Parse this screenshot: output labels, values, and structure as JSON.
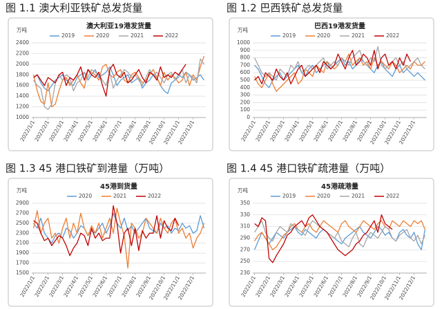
{
  "chart_data": [
    {
      "type": "line",
      "caption": "图 1.1 澳大利亚铁矿总发货量",
      "title": "澳大利亚19港发货量",
      "y_unit": "万吨",
      "categories": [
        "2022/1/1",
        null,
        null,
        null,
        "2022/2/1",
        null,
        null,
        null,
        "2022/3/1",
        null,
        null,
        null,
        "2022/4/1",
        null,
        null,
        null,
        "2022/5/1",
        null,
        null,
        null,
        "2022/6/1",
        null,
        null,
        null,
        "2022/7/1",
        null,
        null,
        null,
        "2022/8/1",
        null,
        null,
        null,
        "2022/9/1",
        null,
        null,
        null,
        "2022/10/1",
        null,
        null,
        null,
        "2022/11/1",
        null,
        null,
        null,
        "2022/12/1",
        null,
        null,
        null
      ],
      "ylim": [
        1000,
        2400
      ],
      "yticks": [
        1000,
        1200,
        1400,
        1600,
        1800,
        2000,
        2200,
        2400
      ],
      "grid": true,
      "series": [
        {
          "name": "2019",
          "color": "#5b9bd5",
          "values": [
            1750,
            1800,
            1650,
            1550,
            1500,
            1600,
            1700,
            1750,
            1800,
            1700,
            1650,
            1600,
            1750,
            1800,
            1850,
            1700,
            1800,
            1900,
            1750,
            1800,
            1850,
            1950,
            1800,
            1600,
            1700,
            1750,
            1800,
            1650,
            1700,
            1750,
            1550,
            1650,
            1700,
            1800,
            1750,
            1600,
            1500,
            1450,
            1650,
            1700,
            1800,
            1750,
            1850,
            1800,
            1700,
            1750,
            1800,
            1700
          ]
        },
        {
          "name": "2020",
          "color": "#ed7d31",
          "values": [
            1800,
            1500,
            1300,
            1250,
            1650,
            1200,
            1250,
            1500,
            1700,
            1750,
            1600,
            1700,
            1800,
            1650,
            1550,
            1900,
            1850,
            1800,
            1700,
            1950,
            2000,
            1800,
            1750,
            1850,
            1900,
            1700,
            1650,
            1800,
            1850,
            1750,
            1650,
            1700,
            1800,
            1900,
            1750,
            1600,
            1850,
            1700,
            1800,
            1750,
            1650,
            1700,
            1850,
            1600,
            1800,
            1700,
            1950,
            2150
          ]
        },
        {
          "name": "2021",
          "color": "#a5a5a5",
          "values": [
            1700,
            1600,
            1550,
            1200,
            1150,
            1250,
            1650,
            1800,
            1700,
            1800,
            1750,
            1500,
            1650,
            1700,
            1850,
            1750,
            1900,
            1850,
            1800,
            1700,
            1600,
            1850,
            1550,
            1700,
            1800,
            1900,
            1850,
            1750,
            1800,
            1700,
            1600,
            1750,
            1900,
            1800,
            1850,
            1750,
            1650,
            1800,
            1850,
            1700,
            1750,
            1900,
            1650,
            1800,
            1750,
            1650,
            2100,
            2000
          ]
        },
        {
          "name": "2022",
          "color": "#c00000",
          "values": [
            1750,
            1800,
            1700,
            1600,
            1750,
            1700,
            1650,
            1800,
            1850,
            1600,
            1750,
            1700,
            1800,
            1950,
            1700,
            1900,
            1800,
            1750,
            1850,
            1600,
            1400,
            1900,
            2000,
            1800,
            1750,
            1850,
            1650,
            1700,
            1800,
            1900,
            1750,
            1650,
            1850,
            1800,
            1700,
            1950,
            1750,
            1800,
            1750,
            1850,
            1800,
            1900,
            2000,
            null,
            null,
            null,
            null,
            null
          ]
        }
      ]
    },
    {
      "type": "line",
      "caption": "图 1.2 巴西铁矿总发货量",
      "title": "巴西19港发货量",
      "y_unit": "万吨",
      "categories": [
        "2022/1/1",
        null,
        null,
        null,
        "2022/2/1",
        null,
        null,
        null,
        "2022/3/1",
        null,
        null,
        null,
        "2022/4/1",
        null,
        null,
        null,
        "2022/5/1",
        null,
        null,
        null,
        "2022/6/1",
        null,
        null,
        null,
        "2022/7/1",
        null,
        null,
        null,
        "2022/8/1",
        null,
        null,
        null,
        "2022/9/1",
        null,
        null,
        null,
        "2022/10/1",
        null,
        null,
        null,
        "2022/11/1",
        null,
        null,
        null,
        "2022/12/1",
        null,
        null,
        null
      ],
      "ylim": [
        0,
        1000
      ],
      "yticks": [
        0,
        100,
        200,
        300,
        400,
        500,
        600,
        700,
        800,
        900,
        1000
      ],
      "grid": true,
      "series": [
        {
          "name": "2019",
          "color": "#5b9bd5",
          "values": [
            700,
            650,
            550,
            450,
            400,
            500,
            550,
            600,
            500,
            550,
            600,
            650,
            700,
            600,
            550,
            650,
            700,
            600,
            650,
            700,
            750,
            650,
            700,
            750,
            800,
            700,
            750,
            650,
            700,
            800,
            750,
            700,
            650,
            600,
            700,
            750,
            650,
            600,
            550,
            650,
            700,
            600,
            650,
            600,
            550,
            600,
            550,
            500
          ]
        },
        {
          "name": "2020",
          "color": "#ed7d31",
          "values": [
            550,
            450,
            400,
            500,
            600,
            450,
            350,
            400,
            450,
            500,
            550,
            600,
            450,
            500,
            650,
            600,
            550,
            700,
            650,
            600,
            750,
            700,
            650,
            700,
            800,
            750,
            850,
            700,
            750,
            800,
            700,
            750,
            650,
            800,
            700,
            750,
            700,
            650,
            750,
            700,
            600,
            650,
            700,
            650,
            750,
            700,
            700,
            750
          ]
        },
        {
          "name": "2021",
          "color": "#a5a5a5",
          "values": [
            800,
            700,
            600,
            550,
            600,
            550,
            500,
            650,
            600,
            550,
            700,
            650,
            750,
            600,
            650,
            700,
            650,
            700,
            750,
            800,
            650,
            700,
            750,
            700,
            800,
            750,
            700,
            800,
            850,
            900,
            750,
            700,
            800,
            750,
            950,
            700,
            650,
            700,
            750,
            800,
            700,
            750,
            650,
            700,
            750,
            800,
            700,
            650
          ]
        },
        {
          "name": "2022",
          "color": "#c00000",
          "values": [
            500,
            550,
            450,
            600,
            550,
            500,
            650,
            550,
            500,
            600,
            450,
            550,
            650,
            700,
            550,
            600,
            650,
            700,
            600,
            750,
            700,
            650,
            700,
            850,
            750,
            650,
            800,
            900,
            700,
            750,
            850,
            800,
            700,
            900,
            650,
            800,
            850,
            700,
            750,
            650,
            800,
            700,
            850,
            750,
            null,
            null,
            null,
            null
          ]
        }
      ]
    },
    {
      "type": "line",
      "caption": "图 1.3 45 港口铁矿到港量（万吨）",
      "title": "45港到货量",
      "y_unit": "万吨",
      "categories": [
        "2022/1/1",
        null,
        null,
        null,
        "2022/2/1",
        null,
        null,
        null,
        "2022/3/1",
        null,
        null,
        null,
        "2022/4/1",
        null,
        null,
        null,
        "2022/5/1",
        null,
        null,
        null,
        "2022/6/1",
        null,
        null,
        null,
        "2022/7/1",
        null,
        null,
        null,
        "2022/8/1",
        null,
        null,
        null,
        "2022/9/1",
        null,
        null,
        null,
        "2022/10/1",
        null,
        null,
        null,
        "2022/11/1",
        null,
        null,
        null,
        "2022/12/1",
        null,
        null,
        null
      ],
      "ylim": [
        1500,
        2900
      ],
      "yticks": [
        1500,
        1700,
        1900,
        2100,
        2300,
        2500,
        2700,
        2900
      ],
      "grid": true,
      "series": [
        {
          "name": "2020",
          "color": "#5b9bd5",
          "values": [
            2500,
            2400,
            2600,
            2300,
            2200,
            2100,
            2250,
            2300,
            2200,
            2400,
            2350,
            2200,
            2300,
            2450,
            2400,
            2250,
            2350,
            2300,
            2400,
            2500,
            2300,
            2450,
            2700,
            2500,
            2400,
            2600,
            2350,
            2450,
            2300,
            2400,
            2500,
            2600,
            2400,
            2350,
            2300,
            2500,
            2400,
            2450,
            2300,
            2400,
            2350,
            2500,
            2400,
            2450,
            2300,
            2350,
            2650,
            2400
          ]
        },
        {
          "name": "2021",
          "color": "#ed7d31",
          "values": [
            2400,
            2750,
            2300,
            2500,
            2600,
            2200,
            2300,
            2100,
            2400,
            2600,
            2200,
            2500,
            2300,
            2700,
            2400,
            2250,
            2450,
            2300,
            2500,
            2200,
            2400,
            2600,
            2300,
            2800,
            2500,
            2250,
            1600,
            2500,
            2400,
            2200,
            2300,
            2600,
            2500,
            2400,
            2300,
            2600,
            2400,
            2300,
            2500,
            2600,
            2300,
            2400,
            2200,
            2300,
            2000,
            2200,
            2300,
            2500
          ]
        },
        {
          "name": "2022",
          "color": "#c00000",
          "values": [
            2550,
            2500,
            2300,
            2150,
            2200,
            2050,
            2150,
            2250,
            2200,
            2050,
            1850,
            2000,
            2100,
            2300,
            2250,
            2050,
            2400,
            2200,
            2300,
            2150,
            2200,
            2200,
            2850,
            2500,
            1900,
            2300,
            2400,
            2050,
            2400,
            1950,
            2350,
            2200,
            2300,
            2300,
            2650,
            2200,
            2550,
            2400,
            2350,
            2600,
            2450,
            null,
            null,
            null,
            null,
            null,
            null,
            null
          ]
        }
      ]
    },
    {
      "type": "line",
      "caption": "图 1.4 45 港口铁矿疏港量（万吨）",
      "title": "45港疏港量",
      "y_unit": "万吨",
      "categories": [
        "2022/1/1",
        null,
        null,
        null,
        "2022/2/1",
        null,
        null,
        null,
        "2022/3/1",
        null,
        null,
        null,
        "2022/4/1",
        null,
        null,
        null,
        "2022/5/1",
        null,
        null,
        null,
        "2022/6/1",
        null,
        null,
        null,
        "2022/7/1",
        null,
        null,
        null,
        "2022/8/1",
        null,
        null,
        null,
        "2022/9/1",
        null,
        null,
        null,
        "2022/10/1",
        null,
        null,
        null,
        "2022/11/1",
        null,
        null,
        null,
        "2022/12/1",
        null,
        null,
        null
      ],
      "ylim": [
        230,
        350
      ],
      "yticks": [
        230,
        250,
        270,
        290,
        310,
        330,
        350
      ],
      "grid": true,
      "series": [
        {
          "name": "2019",
          "color": "#5b9bd5",
          "values": [
            270,
            285,
            300,
            290,
            280,
            290,
            300,
            295,
            290,
            300,
            305,
            310,
            300,
            295,
            305,
            300,
            295,
            290,
            300,
            305,
            300,
            295,
            290,
            285,
            280,
            290,
            295,
            300,
            305,
            310,
            300,
            295,
            290,
            300,
            310,
            305,
            295,
            300,
            290,
            285,
            300,
            305,
            295,
            290,
            300,
            280,
            270,
            305
          ]
        },
        {
          "name": "2020",
          "color": "#ed7d31",
          "values": [
            285,
            295,
            300,
            290,
            280,
            270,
            275,
            285,
            295,
            300,
            310,
            315,
            305,
            300,
            310,
            315,
            305,
            300,
            310,
            320,
            315,
            310,
            305,
            300,
            315,
            320,
            310,
            305,
            300,
            310,
            320,
            315,
            310,
            305,
            315,
            320,
            310,
            305,
            320,
            315,
            310,
            320,
            315,
            310,
            320,
            315,
            320,
            305
          ]
        },
        {
          "name": "2021",
          "color": "#a5a5a5",
          "values": [
            300,
            310,
            320,
            300,
            290,
            285,
            300,
            310,
            305,
            300,
            315,
            310,
            305,
            300,
            295,
            310,
            320,
            315,
            310,
            305,
            300,
            295,
            290,
            300,
            285,
            280,
            275,
            290,
            300,
            280,
            275,
            290,
            300,
            295,
            290,
            300,
            310,
            305,
            290,
            285,
            295,
            300,
            305,
            290,
            285,
            295,
            280,
            295
          ]
        },
        {
          "name": "2022",
          "color": "#c00000",
          "values": [
            315,
            310,
            325,
            320,
            255,
            248,
            260,
            270,
            280,
            295,
            300,
            310,
            315,
            320,
            310,
            325,
            330,
            320,
            310,
            305,
            300,
            290,
            280,
            270,
            265,
            260,
            265,
            270,
            280,
            285,
            295,
            300,
            310,
            320,
            300,
            330,
            315,
            310,
            305,
            null,
            null,
            null,
            null,
            null,
            null,
            null,
            null,
            null
          ]
        }
      ]
    }
  ]
}
